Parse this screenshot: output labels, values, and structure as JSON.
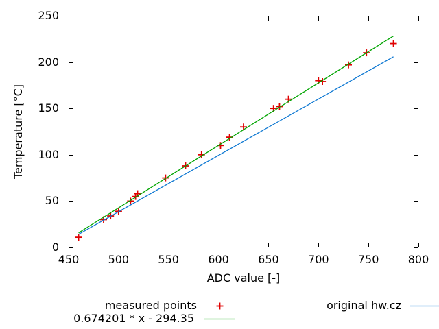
{
  "chart_data": {
    "type": "scatter",
    "title": "",
    "xlabel": "ADC value [-]",
    "ylabel": "Temperature [°C]",
    "xlim": [
      450,
      800
    ],
    "ylim": [
      0,
      250
    ],
    "xticks": [
      450,
      500,
      550,
      600,
      650,
      700,
      750,
      800
    ],
    "yticks": [
      0,
      50,
      100,
      150,
      200,
      250
    ],
    "grid": false,
    "legend_position": "below-plot",
    "background_color": "#ffffff",
    "border_color": "#000000",
    "series": [
      {
        "name": "measured points",
        "type": "points",
        "marker": "plus",
        "color": "#e00000",
        "points": [
          [
            460,
            11
          ],
          [
            485,
            30
          ],
          [
            492,
            34
          ],
          [
            500,
            39
          ],
          [
            512,
            50
          ],
          [
            517,
            55
          ],
          [
            519,
            58
          ],
          [
            547,
            75
          ],
          [
            567,
            88
          ],
          [
            583,
            100
          ],
          [
            602,
            110
          ],
          [
            611,
            119
          ],
          [
            625,
            130
          ],
          [
            655,
            150
          ],
          [
            661,
            152
          ],
          [
            670,
            160
          ],
          [
            700,
            180
          ],
          [
            704,
            179
          ],
          [
            730,
            197
          ],
          [
            748,
            210
          ],
          [
            775,
            220
          ]
        ]
      },
      {
        "name": "0.674201 * x - 294.35",
        "type": "line",
        "color": "#00a500",
        "points": [
          [
            460,
            15.78
          ],
          [
            775,
            228.16
          ]
        ]
      },
      {
        "name": "original hw.cz",
        "type": "line",
        "color": "#0e78d2",
        "points": [
          [
            460,
            14.2
          ],
          [
            775,
            205.8
          ]
        ]
      }
    ]
  }
}
